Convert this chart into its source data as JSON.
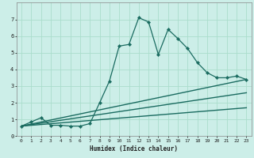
{
  "xlabel": "Humidex (Indice chaleur)",
  "bg_color": "#cceee8",
  "line_color": "#1a6b60",
  "grid_color": "#aaddcc",
  "xlim": [
    -0.5,
    23.5
  ],
  "ylim": [
    0,
    8
  ],
  "xticks": [
    0,
    1,
    2,
    3,
    4,
    5,
    6,
    7,
    8,
    9,
    10,
    11,
    12,
    13,
    14,
    15,
    16,
    17,
    18,
    19,
    20,
    21,
    22,
    23
  ],
  "yticks": [
    0,
    1,
    2,
    3,
    4,
    5,
    6,
    7
  ],
  "series_main": {
    "x": [
      0,
      1,
      2,
      3,
      4,
      5,
      6,
      7,
      8,
      9,
      10,
      11,
      12,
      13,
      14,
      15,
      16,
      17,
      18,
      19,
      20,
      21,
      22,
      23
    ],
    "y": [
      0.6,
      0.85,
      1.1,
      0.65,
      0.65,
      0.6,
      0.6,
      0.75,
      2.0,
      3.3,
      5.4,
      5.5,
      7.1,
      6.85,
      4.9,
      6.4,
      5.85,
      5.25,
      4.4,
      3.8,
      3.5,
      3.5,
      3.6,
      3.4
    ],
    "marker": "D",
    "markersize": 2.2,
    "linewidth": 0.9
  },
  "series_lines": [
    {
      "x": [
        0,
        23
      ],
      "y": [
        0.6,
        3.4
      ]
    },
    {
      "x": [
        0,
        23
      ],
      "y": [
        0.6,
        2.6
      ]
    },
    {
      "x": [
        0,
        23
      ],
      "y": [
        0.6,
        1.7
      ]
    }
  ],
  "line_linewidth": 1.0,
  "xlabel_fontsize": 5.5,
  "tick_fontsize": 4.5
}
